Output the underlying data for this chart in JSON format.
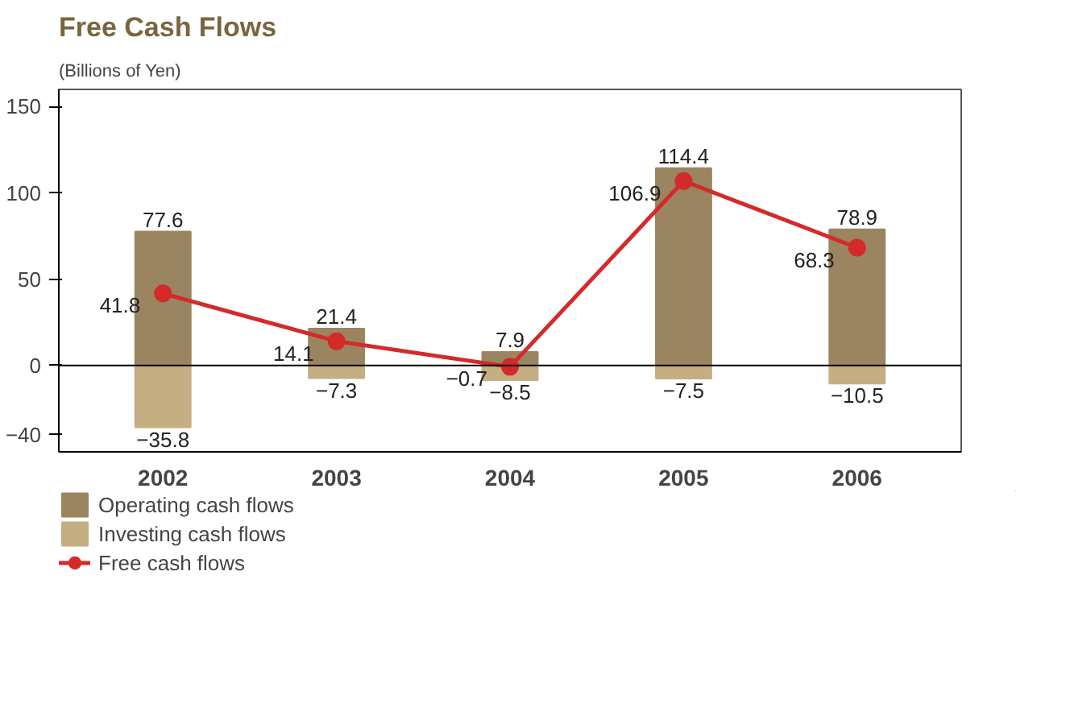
{
  "chart_data": {
    "type": "bar",
    "title": "Free Cash Flows",
    "subtitle": "(Billions of Yen)",
    "categories": [
      "2002",
      "2003",
      "2004",
      "2005",
      "2006"
    ],
    "stacked": true,
    "series": [
      {
        "name": "Operating cash flows",
        "color": "#9a8560",
        "values": [
          77.6,
          21.4,
          7.9,
          114.4,
          78.9
        ],
        "value_labels": [
          "77.6",
          "21.4",
          "7.9",
          "114.4",
          "78.9"
        ]
      },
      {
        "name": "Investing cash flows",
        "color": "#c4ae82",
        "values": [
          -35.8,
          -7.3,
          -8.5,
          -7.5,
          -10.5
        ],
        "value_labels": [
          "−35.8",
          "−7.3",
          "−8.5",
          "−7.5",
          "−10.5"
        ]
      },
      {
        "name": "Free cash flows",
        "type": "line",
        "color": "#d42a2a",
        "values": [
          41.8,
          14.1,
          -0.7,
          106.9,
          68.3
        ],
        "value_labels": [
          "41.8",
          "14.1",
          "−0.7",
          "106.9",
          "68.3"
        ]
      }
    ],
    "marker": "circle",
    "ylim": [
      -50,
      160
    ],
    "yticks": [
      {
        "value": -40,
        "label": "−40"
      },
      0,
      50,
      100,
      150
    ],
    "ref_lines": [
      {
        "axis": "y",
        "value": 0,
        "color": "#000000"
      }
    ],
    "grid": false,
    "legend": "bottom left"
  }
}
